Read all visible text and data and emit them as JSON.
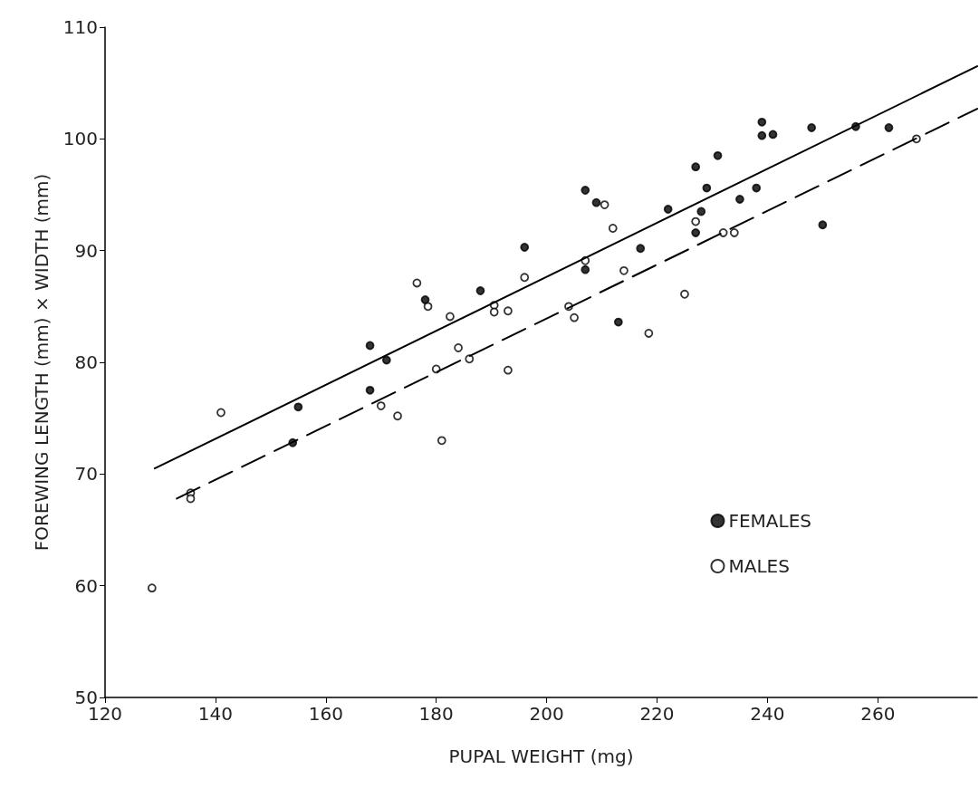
{
  "chart_data": {
    "type": "scatter",
    "xlabel": "PUPAL WEIGHT (mg)",
    "ylabel": "FOREWING LENGTH (mm) × WIDTH (mm)",
    "xlim": [
      120,
      278
    ],
    "xticks": [
      120,
      140,
      160,
      180,
      200,
      220,
      240,
      260
    ],
    "ylim": [
      50,
      110
    ],
    "yticks": [
      50,
      60,
      70,
      80,
      90,
      100,
      110
    ],
    "grid": false,
    "legend": "right",
    "marker": "circle",
    "series": [
      {
        "name": "FEMALES",
        "color": "#000000",
        "x": [
          154,
          155,
          168,
          168,
          171,
          178,
          188,
          196,
          207,
          207,
          209,
          213,
          217,
          222,
          227,
          227,
          228,
          229,
          231,
          235,
          238,
          239,
          239,
          241,
          248,
          250,
          256,
          262
        ],
        "values": [
          72.8,
          76,
          81.5,
          77.5,
          80.2,
          85.6,
          86.4,
          90.3,
          88.3,
          95.4,
          94.3,
          83.6,
          90.2,
          93.7,
          97.5,
          91.6,
          93.5,
          95.6,
          98.5,
          94.6,
          95.6,
          101.5,
          100.3,
          100.4,
          101,
          92.3,
          101.1,
          101
        ]
      },
      {
        "name": "MALES",
        "color": "#000000",
        "x": [
          128.5,
          135.5,
          135.5,
          141,
          170,
          173,
          176.5,
          178.5,
          180,
          181,
          182.5,
          184,
          186,
          190.5,
          190.5,
          193,
          193,
          196,
          204,
          205,
          207,
          210.5,
          212,
          214,
          218.5,
          225,
          227,
          232,
          234,
          267
        ],
        "values": [
          59.8,
          68.3,
          67.8,
          75.5,
          76.1,
          75.2,
          87.1,
          85,
          79.4,
          73,
          84.1,
          81.3,
          80.3,
          85.1,
          84.5,
          84.6,
          79.3,
          87.6,
          85,
          84,
          89.1,
          94.1,
          92,
          88.2,
          82.6,
          86.1,
          92.6,
          91.6,
          91.6,
          100
        ]
      },
      {
        "type": "line",
        "color": "#000000",
        "marker": "none",
        "line_style": "solid",
        "x": [
          129,
          278
        ],
        "values": [
          70.5,
          106.5
        ]
      },
      {
        "type": "line",
        "color": "#000000",
        "marker": "none",
        "line_style": "dashed",
        "x": [
          133,
          278
        ],
        "values": [
          67.8,
          102.7
        ]
      }
    ]
  }
}
